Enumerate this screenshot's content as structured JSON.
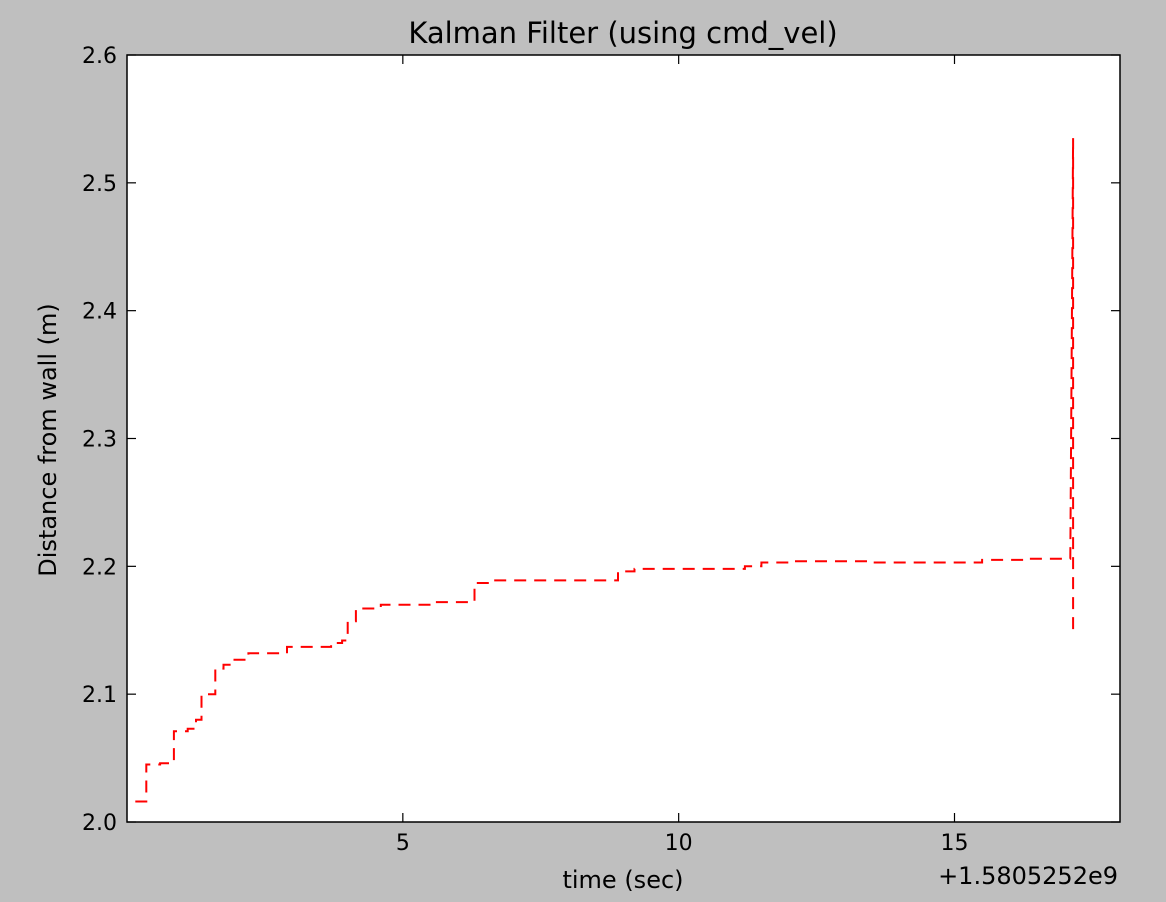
{
  "chart_data": {
    "type": "line",
    "title": "Kalman Filter (using cmd_vel)",
    "xlabel": "time (sec)",
    "ylabel": "Distance from wall (m)",
    "x_offset_label": "+1.5805252e9",
    "xlim": [
      0,
      18
    ],
    "ylim": [
      2.0,
      2.6
    ],
    "xticks": [
      5,
      10,
      15
    ],
    "xtick_labels": [
      "5",
      "10",
      "15"
    ],
    "yticks": [
      2.0,
      2.1,
      2.2,
      2.3,
      2.4,
      2.5,
      2.6
    ],
    "ytick_labels": [
      "2.0",
      "2.1",
      "2.2",
      "2.3",
      "2.4",
      "2.5",
      "2.6"
    ],
    "grid": false,
    "legend": "none",
    "background_color": "#bfbfbf",
    "series": [
      {
        "color": "#ff0000",
        "linestyle": "dashed",
        "x": [
          0.15,
          0.35,
          0.35,
          0.6,
          0.6,
          0.85,
          0.85,
          1.1,
          1.1,
          1.25,
          1.25,
          1.35,
          1.35,
          1.6,
          1.6,
          1.75,
          1.75,
          1.9,
          1.9,
          2.2,
          2.2,
          2.9,
          2.9,
          3.7,
          3.7,
          3.9,
          3.9,
          4.0,
          4.0,
          4.15,
          4.15,
          4.6,
          4.6,
          5.6,
          5.6,
          6.3,
          6.3,
          6.6,
          6.6,
          8.9,
          8.9,
          9.2,
          9.2,
          11.2,
          11.2,
          11.5,
          11.5,
          12.1,
          12.1,
          13.5,
          13.5,
          15.5,
          15.5,
          16.3,
          16.3,
          17.1,
          17.1,
          17.15,
          17.15,
          17.15
        ],
        "y": [
          2.016,
          2.016,
          2.045,
          2.045,
          2.046,
          2.046,
          2.071,
          2.071,
          2.073,
          2.073,
          2.08,
          2.08,
          2.1,
          2.1,
          2.12,
          2.12,
          2.123,
          2.123,
          2.127,
          2.127,
          2.132,
          2.132,
          2.137,
          2.137,
          2.14,
          2.14,
          2.142,
          2.142,
          2.157,
          2.157,
          2.167,
          2.167,
          2.17,
          2.17,
          2.172,
          2.172,
          2.187,
          2.187,
          2.189,
          2.189,
          2.196,
          2.196,
          2.198,
          2.198,
          2.2,
          2.2,
          2.203,
          2.203,
          2.204,
          2.204,
          2.203,
          2.203,
          2.205,
          2.205,
          2.206,
          2.206,
          2.206,
          2.535,
          2.535,
          2.145
        ]
      }
    ]
  }
}
